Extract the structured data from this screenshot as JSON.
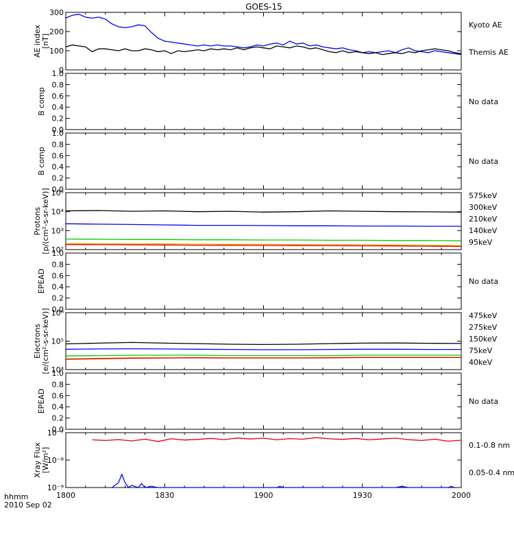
{
  "title": "GOES-15",
  "time_axis": {
    "ticks": [
      "1800",
      "1830",
      "1900",
      "1930",
      "2000"
    ],
    "label_line1": "hhmm",
    "label_line2": "2010 Sep 02"
  },
  "colors": {
    "black": "#000000",
    "blue": "#0000ff",
    "green": "#00cc00",
    "orange": "#e6a000",
    "red": "#dd0000"
  },
  "panels": [
    {
      "id": "ae",
      "ylabel": [
        "AE index",
        "[nT]"
      ],
      "yticks": [
        "0",
        "100",
        "200",
        "300"
      ],
      "legend": [
        {
          "text": "Kyoto AE",
          "color": "#0000ff"
        },
        {
          "text": "Themis AE",
          "color": "#000000"
        }
      ]
    },
    {
      "id": "bcomp1",
      "ylabel": [
        "B comp"
      ],
      "yticks": [
        "0.0",
        "0.2",
        "0.4",
        "0.6",
        "0.8",
        "1.0"
      ],
      "nodata": "No data"
    },
    {
      "id": "bcomp2",
      "ylabel": [
        "B comp"
      ],
      "yticks": [
        "0.0",
        "0.2",
        "0.4",
        "0.6",
        "0.8",
        "1.0"
      ],
      "nodata": "No data"
    },
    {
      "id": "protons",
      "ylabel": [
        "Protons",
        "[p/(cm²-s-sr-keV)]"
      ],
      "yticks": [
        "10²",
        "10³",
        "10⁴",
        "10⁵"
      ],
      "legend": [
        {
          "text": "575keV",
          "color": "#dd0000"
        },
        {
          "text": "300keV",
          "color": "#e6a000"
        },
        {
          "text": "210keV",
          "color": "#00cc00"
        },
        {
          "text": "140keV",
          "color": "#0000ff"
        },
        {
          "text": "95keV",
          "color": "#000000"
        }
      ]
    },
    {
      "id": "epead1",
      "ylabel": [
        "EPEAD"
      ],
      "yticks": [
        "0.0",
        "0.2",
        "0.4",
        "0.6",
        "0.8",
        "1.0"
      ],
      "nodata": "No data"
    },
    {
      "id": "electrons",
      "ylabel": [
        "Electrons",
        "[e/(cm²-s-sr-keV)]"
      ],
      "yticks": [
        "10⁴",
        "10⁵",
        "10⁶"
      ],
      "legend": [
        {
          "text": "475keV",
          "color": "#dd0000"
        },
        {
          "text": "275keV",
          "color": "#e6a000"
        },
        {
          "text": "150keV",
          "color": "#00cc00"
        },
        {
          "text": "75keV",
          "color": "#0000ff"
        },
        {
          "text": "40keV",
          "color": "#000000"
        }
      ]
    },
    {
      "id": "epead2",
      "ylabel": [
        "EPEAD"
      ],
      "yticks": [
        "0.0",
        "0.2",
        "0.4",
        "0.6",
        "0.8",
        "1.0"
      ],
      "nodata": "No data"
    },
    {
      "id": "xray",
      "ylabel": [
        "Xray Flux",
        "[W/m²]"
      ],
      "yticks": [
        "10⁻⁹",
        "10⁻⁸",
        "10⁻⁷"
      ],
      "legend": [
        {
          "text": "0.1-0.8 nm",
          "color": "#dd0000"
        },
        {
          "text": "0.05-0.4 nm",
          "color": "#0000ff"
        }
      ]
    }
  ],
  "chart_data": [
    {
      "type": "line",
      "panel": "ae",
      "x_unit": "minutes since 18:00 UT",
      "xlim": [
        0,
        120
      ],
      "ylim": [
        0,
        300
      ],
      "series": [
        {
          "name": "Kyoto AE",
          "color": "#0000ff",
          "x": [
            0,
            2,
            4,
            6,
            8,
            10,
            12,
            14,
            16,
            18,
            20,
            22,
            24,
            26,
            28,
            30,
            32,
            34,
            36,
            38,
            40,
            42,
            44,
            46,
            48,
            50,
            52,
            54,
            56,
            58,
            60,
            62,
            64,
            66,
            68,
            70,
            72,
            74,
            76,
            78,
            80,
            82,
            84,
            86,
            88,
            90,
            92,
            94,
            96,
            98,
            100,
            102,
            104,
            106,
            108,
            110,
            112,
            114,
            116,
            118,
            120
          ],
          "values": [
            270,
            285,
            290,
            275,
            270,
            275,
            265,
            240,
            225,
            220,
            225,
            235,
            230,
            195,
            165,
            150,
            145,
            140,
            135,
            130,
            125,
            130,
            125,
            130,
            125,
            125,
            120,
            115,
            120,
            130,
            125,
            135,
            140,
            130,
            150,
            135,
            140,
            125,
            130,
            120,
            115,
            110,
            115,
            105,
            100,
            90,
            95,
            90,
            95,
            100,
            90,
            105,
            115,
            100,
            95,
            90,
            100,
            95,
            90,
            85,
            80
          ]
        },
        {
          "name": "Themis AE",
          "color": "#000000",
          "x": [
            0,
            2,
            4,
            6,
            8,
            10,
            12,
            14,
            16,
            18,
            20,
            22,
            24,
            26,
            28,
            30,
            32,
            34,
            36,
            38,
            40,
            42,
            44,
            46,
            48,
            50,
            52,
            54,
            56,
            58,
            60,
            62,
            64,
            66,
            68,
            70,
            72,
            74,
            76,
            78,
            80,
            82,
            84,
            86,
            88,
            90,
            92,
            94,
            96,
            98,
            100,
            102,
            104,
            106,
            108,
            110,
            112,
            114,
            116,
            118,
            120
          ],
          "values": [
            120,
            130,
            125,
            120,
            95,
            110,
            110,
            105,
            100,
            110,
            100,
            100,
            110,
            105,
            95,
            100,
            85,
            100,
            95,
            100,
            105,
            100,
            110,
            105,
            110,
            105,
            115,
            105,
            115,
            120,
            115,
            110,
            125,
            120,
            115,
            125,
            120,
            110,
            115,
            105,
            95,
            90,
            100,
            90,
            95,
            90,
            85,
            90,
            80,
            85,
            90,
            85,
            95,
            90,
            100,
            105,
            110,
            105,
            100,
            90,
            85
          ]
        }
      ]
    },
    {
      "type": "line",
      "panel": "protons",
      "x_unit": "minutes since 18:00 UT",
      "xlim": [
        0,
        120
      ],
      "ylim": [
        100,
        100000
      ],
      "yscale": "log",
      "series": [
        {
          "name": "95keV",
          "color": "#000000",
          "x": [
            0,
            10,
            20,
            30,
            40,
            50,
            60,
            70,
            80,
            90,
            100,
            110,
            120
          ],
          "values": [
            11000,
            11500,
            10500,
            11000,
            10000,
            10500,
            9500,
            10000,
            11000,
            10500,
            10000,
            9800,
            9500
          ]
        },
        {
          "name": "140keV",
          "color": "#0000ff",
          "x": [
            0,
            10,
            20,
            30,
            40,
            50,
            60,
            70,
            80,
            90,
            100,
            110,
            120
          ],
          "values": [
            2300,
            2200,
            2100,
            2000,
            1900,
            1900,
            1850,
            1800,
            1800,
            1750,
            1750,
            1700,
            1700
          ]
        },
        {
          "name": "210keV",
          "color": "#00cc00",
          "x": [
            0,
            10,
            20,
            30,
            40,
            50,
            60,
            70,
            80,
            90,
            100,
            110,
            120
          ],
          "values": [
            360,
            350,
            340,
            340,
            330,
            330,
            320,
            320,
            310,
            310,
            300,
            300,
            290
          ]
        },
        {
          "name": "300keV",
          "color": "#e6a000",
          "x": [
            0,
            10,
            20,
            30,
            40,
            50,
            60,
            70,
            80,
            90,
            100,
            110,
            120
          ],
          "values": [
            210,
            205,
            200,
            200,
            195,
            190,
            190,
            185,
            185,
            180,
            175,
            170,
            165
          ]
        },
        {
          "name": "575keV",
          "color": "#dd0000",
          "x": [
            0,
            10,
            20,
            30,
            40,
            50,
            60,
            70,
            80,
            90,
            100,
            110,
            120
          ],
          "values": [
            185,
            180,
            178,
            175,
            170,
            168,
            165,
            162,
            160,
            158,
            155,
            150,
            145
          ]
        }
      ]
    },
    {
      "type": "line",
      "panel": "electrons",
      "x_unit": "minutes since 18:00 UT",
      "xlim": [
        0,
        120
      ],
      "ylim": [
        10000,
        1000000
      ],
      "yscale": "log",
      "series": [
        {
          "name": "40keV",
          "color": "#000000",
          "x": [
            0,
            10,
            20,
            30,
            40,
            50,
            60,
            70,
            80,
            90,
            100,
            110,
            120
          ],
          "values": [
            80000,
            85000,
            90000,
            85000,
            82000,
            78000,
            76000,
            78000,
            82000,
            85000,
            86000,
            84000,
            83000
          ]
        },
        {
          "name": "75keV",
          "color": "#0000ff",
          "x": [
            0,
            10,
            20,
            30,
            40,
            50,
            60,
            70,
            80,
            90,
            100,
            110,
            120
          ],
          "values": [
            52000,
            53000,
            54000,
            53000,
            52000,
            51000,
            50000,
            50000,
            51000,
            52000,
            52000,
            51000,
            51000
          ]
        },
        {
          "name": "150keV",
          "color": "#00cc00",
          "x": [
            0,
            10,
            20,
            30,
            40,
            50,
            60,
            70,
            80,
            90,
            100,
            110,
            120
          ],
          "values": [
            30000,
            31000,
            32000,
            32000,
            32000,
            31000,
            31000,
            31000,
            31000,
            32000,
            32000,
            32000,
            32000
          ]
        },
        {
          "name": "275keV",
          "color": "#e6a000",
          "x": [
            0,
            10,
            20,
            30,
            40,
            50,
            60,
            70,
            80,
            90,
            100,
            110,
            120
          ],
          "values": [
            24000,
            25000,
            26000,
            26000,
            26500,
            26000,
            26000,
            26000,
            26500,
            27000,
            27000,
            27000,
            27000
          ]
        },
        {
          "name": "475keV",
          "color": "#dd0000",
          "x": [
            0,
            10,
            20,
            30,
            40,
            50,
            60,
            70,
            80,
            90,
            100,
            110,
            120
          ],
          "values": [
            23000,
            24000,
            25000,
            25500,
            26000,
            25500,
            25500,
            25500,
            26000,
            26500,
            26500,
            26500,
            26500
          ]
        }
      ]
    },
    {
      "type": "line",
      "panel": "xray",
      "x_unit": "minutes since 18:00 UT",
      "xlim": [
        0,
        120
      ],
      "ylim": [
        1e-09,
        1e-07
      ],
      "yscale": "log",
      "series": [
        {
          "name": "0.1-0.8 nm",
          "color": "#dd0000",
          "x": [
            8,
            12,
            16,
            20,
            24,
            28,
            32,
            36,
            40,
            44,
            48,
            52,
            56,
            60,
            64,
            68,
            72,
            76,
            80,
            84,
            88,
            92,
            96,
            100,
            104,
            108,
            112,
            116,
            120
          ],
          "values": [
            5.5e-08,
            5.2e-08,
            5.6e-08,
            5e-08,
            5.8e-08,
            4.8e-08,
            6e-08,
            5.4e-08,
            5.7e-08,
            6.2e-08,
            5.6e-08,
            6.4e-08,
            5.9e-08,
            6.3e-08,
            5.5e-08,
            6.1e-08,
            5.8e-08,
            6.6e-08,
            6e-08,
            5.7e-08,
            6.2e-08,
            5.5e-08,
            5.9e-08,
            6.3e-08,
            5.6e-08,
            5.2e-08,
            5.8e-08,
            4.9e-08,
            5.3e-08
          ]
        },
        {
          "name": "0.05-0.4 nm",
          "color": "#0000ff",
          "x": [
            14,
            16,
            17,
            18,
            19,
            20,
            22,
            23,
            24,
            26,
            28,
            30,
            40,
            50,
            60,
            64,
            65,
            66,
            68,
            70,
            80,
            100,
            102,
            104,
            106,
            110,
            114,
            116,
            117,
            118
          ],
          "values": [
            1e-09,
            1.5e-09,
            3e-09,
            1.5e-09,
            1e-09,
            1.2e-09,
            1e-09,
            1.4e-09,
            1e-09,
            1.1e-09,
            1e-09,
            1e-09,
            1e-09,
            1e-09,
            1e-09,
            1e-09,
            1.1e-09,
            1e-09,
            1e-09,
            1e-09,
            1e-09,
            1e-09,
            1.1e-09,
            1e-09,
            1e-09,
            1e-09,
            1e-09,
            1e-09,
            1.1e-09,
            1e-09
          ]
        }
      ]
    }
  ]
}
